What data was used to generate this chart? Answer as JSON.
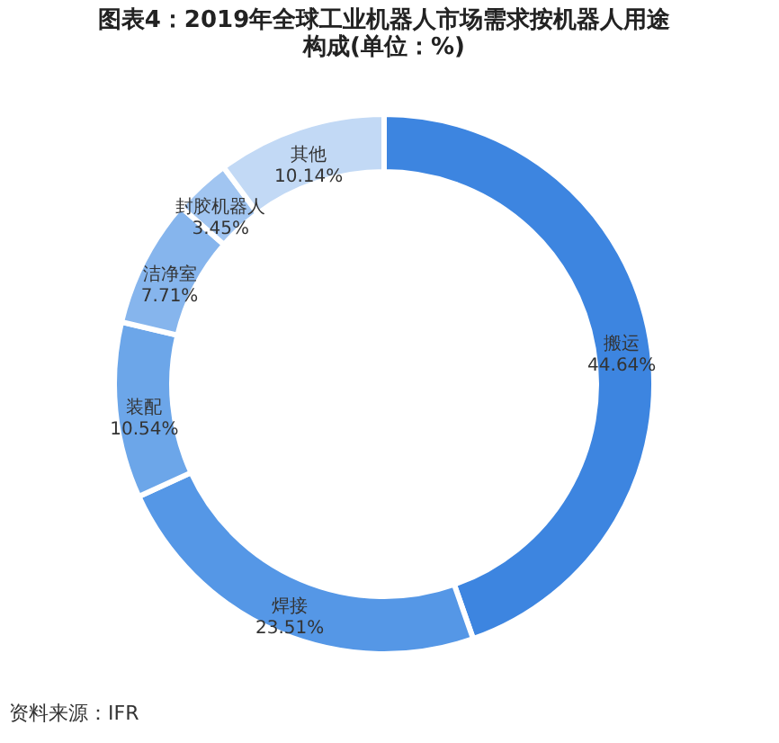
{
  "chart_data": {
    "type": "donut",
    "title": "图表4：2019年全球工业机器人市场需求按机器人用途构成(单位：%)",
    "categories": [
      "搬运",
      "焊接",
      "装配",
      "洁净室",
      "封胶机器人",
      "其他"
    ],
    "values": [
      44.64,
      23.51,
      10.54,
      7.71,
      3.45,
      10.14
    ],
    "colors": [
      "#3d85e0",
      "#5597e6",
      "#6ca6e9",
      "#86b5ed",
      "#a1c5f1",
      "#c2d9f5"
    ],
    "value_labels": [
      "44.64%",
      "23.51%",
      "10.54%",
      "7.71%",
      "3.45%",
      "10.14%"
    ],
    "legend": false,
    "annotations": [
      "资料来源：IFR"
    ]
  }
}
